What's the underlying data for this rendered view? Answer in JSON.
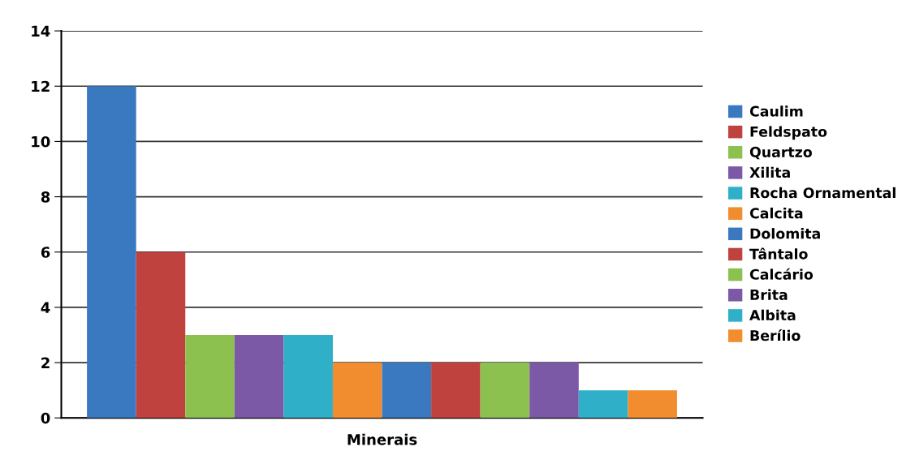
{
  "chart_data": {
    "type": "bar",
    "categories": [
      "Minerais"
    ],
    "series": [
      {
        "name": "Caulim",
        "color": "#3a78c0",
        "values": [
          12
        ]
      },
      {
        "name": "Feldspato",
        "color": "#c0423e",
        "values": [
          6
        ]
      },
      {
        "name": "Quartzo",
        "color": "#8cc04f",
        "values": [
          3
        ]
      },
      {
        "name": "Xilita",
        "color": "#7b59a6",
        "values": [
          3
        ]
      },
      {
        "name": "Rocha Ornamental",
        "color": "#2fb0c8",
        "values": [
          3
        ]
      },
      {
        "name": "Calcita",
        "color": "#f18d2e",
        "values": [
          2
        ]
      },
      {
        "name": "Dolomita",
        "color": "#3a78c0",
        "values": [
          2
        ]
      },
      {
        "name": "Tântalo",
        "color": "#c0423e",
        "values": [
          2
        ]
      },
      {
        "name": "Calcário",
        "color": "#8cc04f",
        "values": [
          2
        ]
      },
      {
        "name": "Brita",
        "color": "#7b59a6",
        "values": [
          2
        ]
      },
      {
        "name": "Albita",
        "color": "#2fb0c8",
        "values": [
          1
        ]
      },
      {
        "name": "Berílio",
        "color": "#f18d2e",
        "values": [
          1
        ]
      }
    ],
    "ylim": [
      0,
      14
    ],
    "yticks": [
      0,
      2,
      4,
      6,
      8,
      10,
      12,
      14
    ],
    "grid": "y",
    "legend": "right"
  }
}
